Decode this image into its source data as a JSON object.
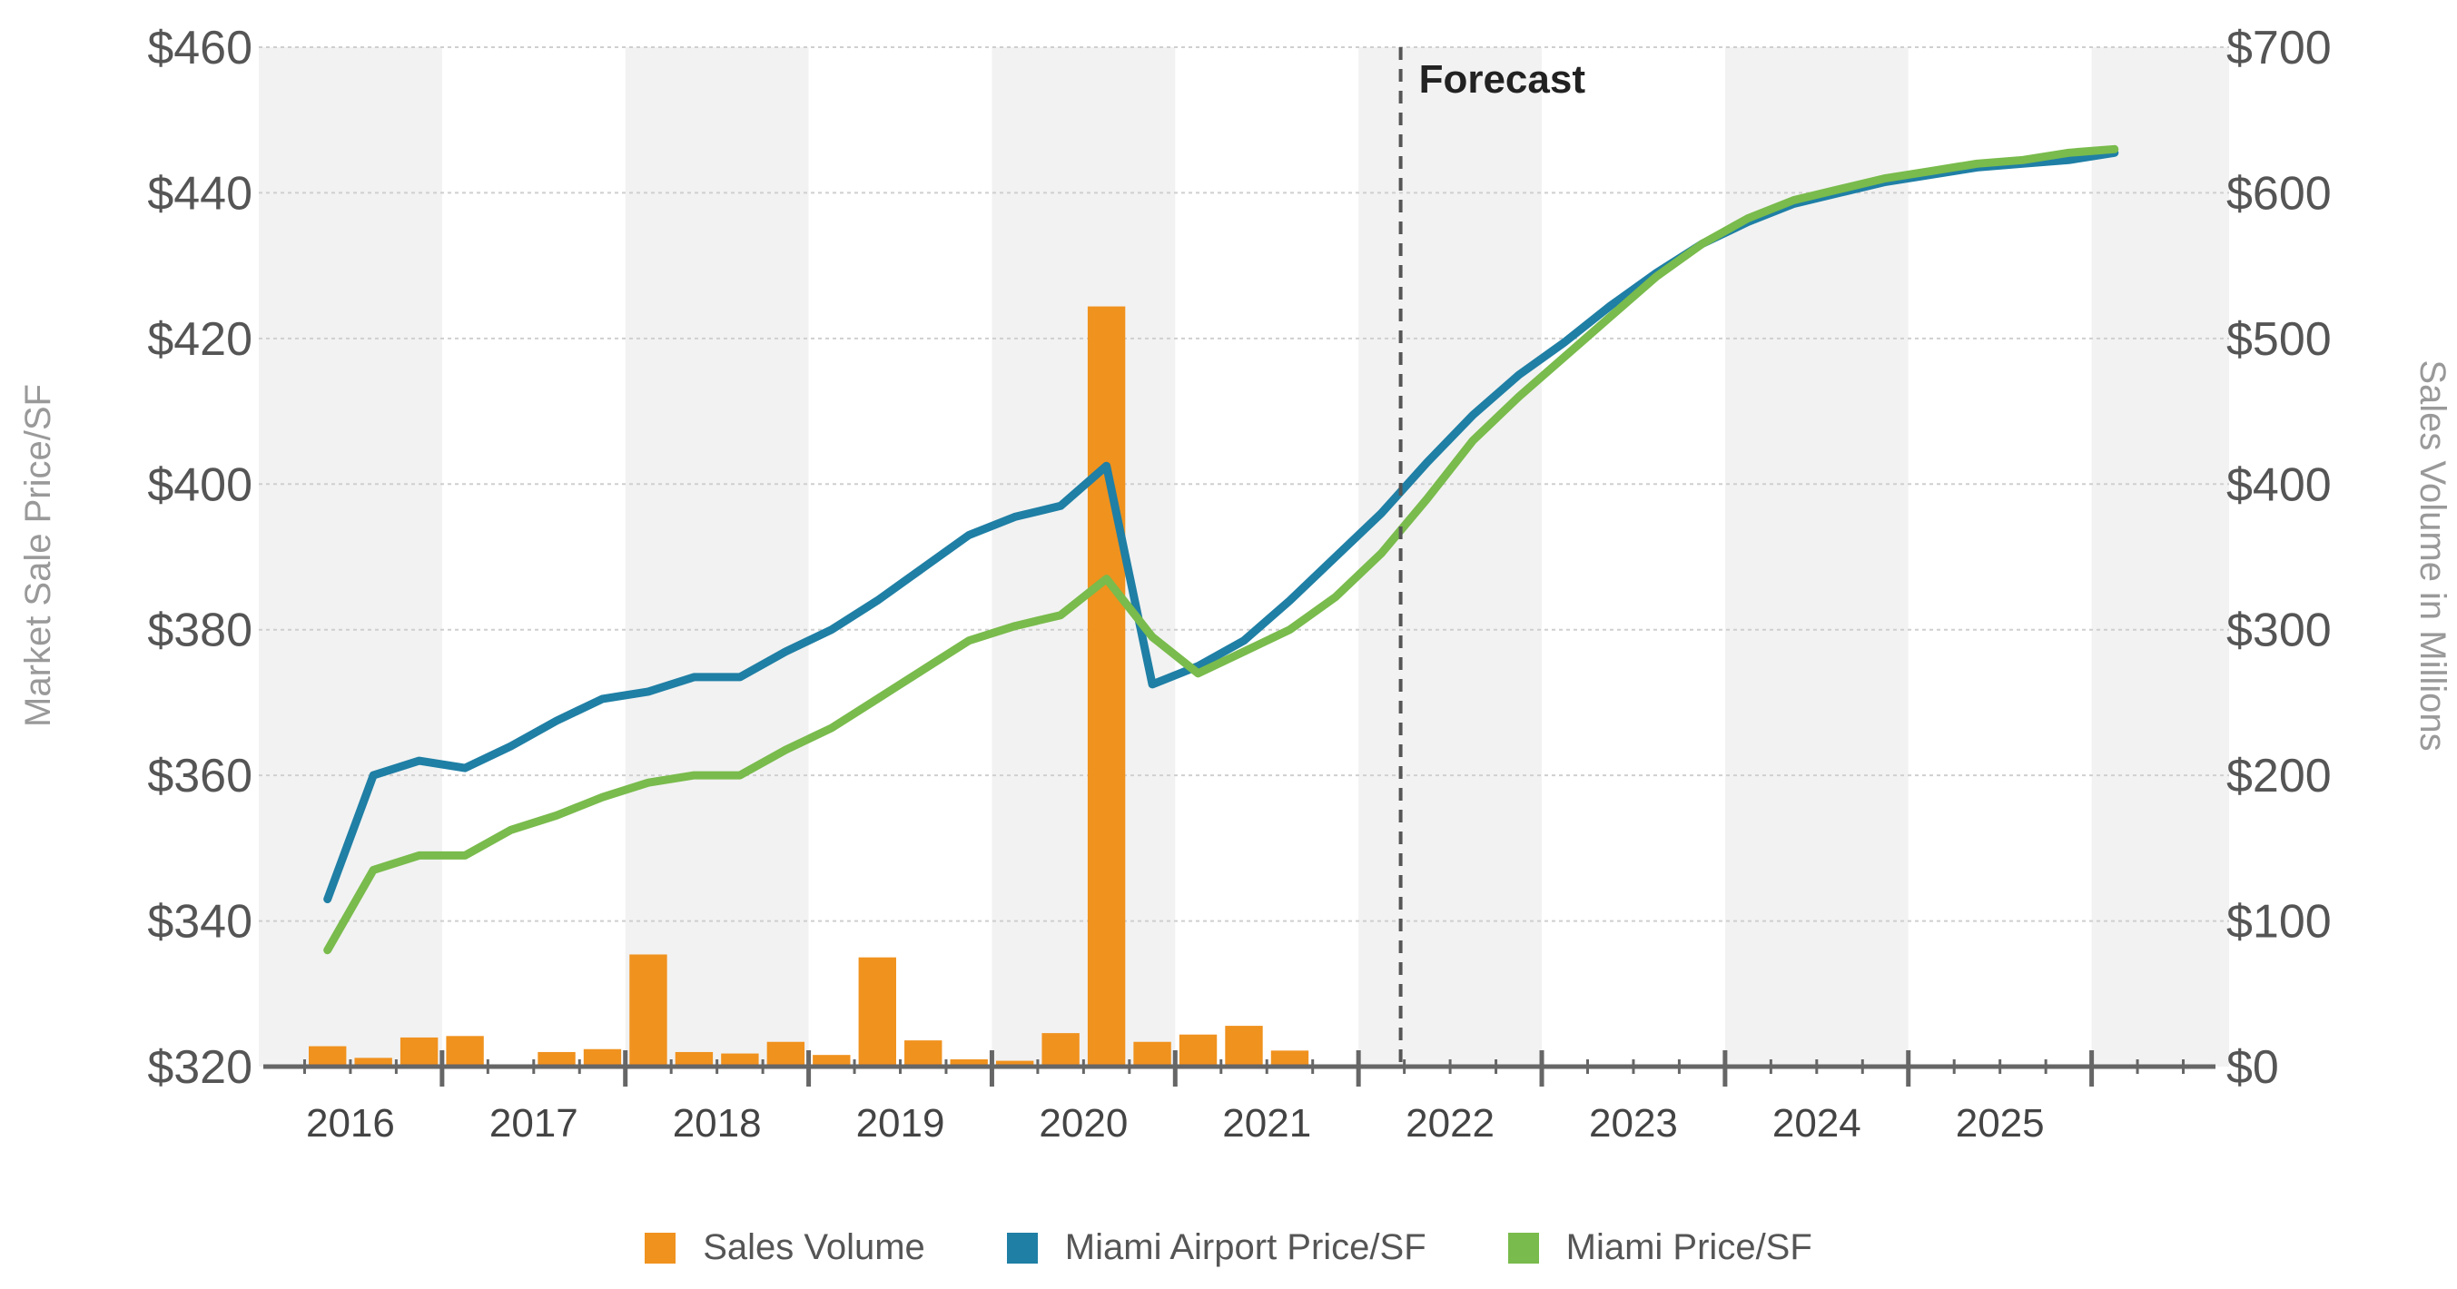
{
  "chart_data": {
    "type": "bar+line",
    "forecast_label": "Forecast",
    "forecast_start": 2021.73,
    "y_left": {
      "label": "Market Sale Price/SF",
      "min": 320,
      "max": 460,
      "ticks": [
        320,
        340,
        360,
        380,
        400,
        420,
        440,
        460
      ],
      "tick_labels": [
        "$320",
        "$340",
        "$360",
        "$380",
        "$400",
        "$420",
        "$440",
        "$460"
      ]
    },
    "y_right": {
      "label": "Sales Volume in Millions",
      "min": 0,
      "max": 700,
      "ticks": [
        0,
        100,
        200,
        300,
        400,
        500,
        600,
        700
      ],
      "tick_labels": [
        "$0",
        "$100",
        "$200",
        "$300",
        "$400",
        "$500",
        "$600",
        "$700"
      ]
    },
    "x_axis": {
      "min": 2015.5,
      "max": 2026.25,
      "years": [
        "2016",
        "2017",
        "2018",
        "2019",
        "2020",
        "2021",
        "2022",
        "2023",
        "2024",
        "2025"
      ]
    },
    "series": [
      {
        "name": "Sales Volume",
        "kind": "bar",
        "axis": "right",
        "color": "#f0921e",
        "x": [
          2015.875,
          2016.125,
          2016.375,
          2016.625,
          2016.875,
          2017.125,
          2017.375,
          2017.625,
          2017.875,
          2018.125,
          2018.375,
          2018.625,
          2018.875,
          2019.125,
          2019.375,
          2019.625,
          2019.875,
          2020.125,
          2020.375,
          2020.625,
          2020.875,
          2021.125,
          2021.375,
          2021.625
        ],
        "values": [
          14,
          6,
          20,
          21,
          1,
          10,
          12,
          77,
          10,
          9,
          17,
          8,
          75,
          18,
          5,
          4,
          23,
          522,
          17,
          22,
          28,
          11,
          0,
          0
        ]
      },
      {
        "name": "Miami Airport Price/SF",
        "kind": "line",
        "axis": "left",
        "color": "#1f7fa5",
        "x": [
          2015.875,
          2016.125,
          2016.375,
          2016.625,
          2016.875,
          2017.125,
          2017.375,
          2017.625,
          2017.875,
          2018.125,
          2018.375,
          2018.625,
          2018.875,
          2019.125,
          2019.375,
          2019.625,
          2019.875,
          2020.125,
          2020.375,
          2020.625,
          2020.875,
          2021.125,
          2021.375,
          2021.625,
          2021.875,
          2022.125,
          2022.375,
          2022.625,
          2022.875,
          2023.125,
          2023.375,
          2023.625,
          2023.875,
          2024.125,
          2024.375,
          2024.625,
          2024.875,
          2025.125,
          2025.375,
          2025.625
        ],
        "values": [
          343,
          360,
          362,
          361,
          364,
          367.5,
          370.5,
          371.5,
          373.5,
          373.5,
          377,
          380,
          384,
          388.5,
          393,
          395.5,
          397,
          402.5,
          372.5,
          375,
          378.5,
          384,
          390,
          396,
          403,
          409.5,
          415,
          419.5,
          424.5,
          429,
          433,
          436,
          438.5,
          440,
          441.5,
          442.5,
          443.5,
          444,
          444.5,
          445.5
        ]
      },
      {
        "name": "Miami Price/SF",
        "kind": "line",
        "axis": "left",
        "color": "#79bb4c",
        "x": [
          2015.875,
          2016.125,
          2016.375,
          2016.625,
          2016.875,
          2017.125,
          2017.375,
          2017.625,
          2017.875,
          2018.125,
          2018.375,
          2018.625,
          2018.875,
          2019.125,
          2019.375,
          2019.625,
          2019.875,
          2020.125,
          2020.375,
          2020.625,
          2020.875,
          2021.125,
          2021.375,
          2021.625,
          2021.875,
          2022.125,
          2022.375,
          2022.625,
          2022.875,
          2023.125,
          2023.375,
          2023.625,
          2023.875,
          2024.125,
          2024.375,
          2024.625,
          2024.875,
          2025.125,
          2025.375,
          2025.625
        ],
        "values": [
          336,
          347,
          349,
          349,
          352.5,
          354.5,
          357,
          359,
          360,
          360,
          363.5,
          366.5,
          370.5,
          374.5,
          378.5,
          380.5,
          382,
          387,
          379,
          374,
          377,
          380,
          384.5,
          390.5,
          398,
          406,
          412,
          417.5,
          423,
          428.5,
          433,
          436.5,
          439,
          440.5,
          442,
          443,
          444,
          444.5,
          445.5,
          446
        ]
      }
    ],
    "legend": [
      {
        "label": "Sales Volume",
        "color": "#f0921e"
      },
      {
        "label": "Miami Airport Price/SF",
        "color": "#1f7fa5"
      },
      {
        "label": "Miami Price/SF",
        "color": "#79bb4c"
      }
    ]
  }
}
